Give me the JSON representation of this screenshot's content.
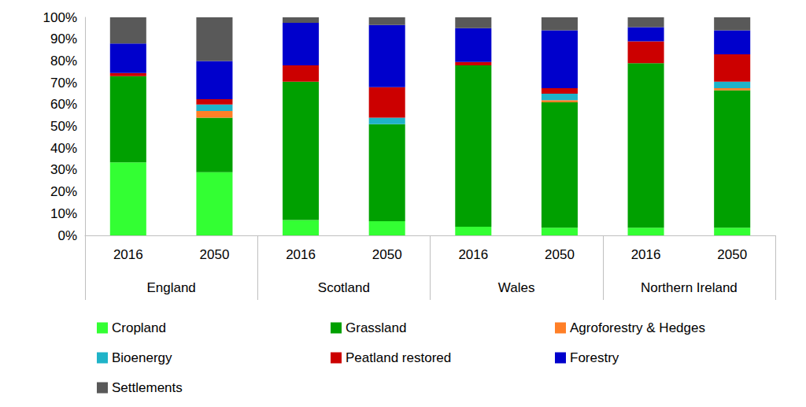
{
  "chart_data": {
    "type": "bar",
    "stacked": true,
    "grid": false,
    "legend": "bottom",
    "categories": [
      "2016",
      "2050",
      "2016",
      "2050",
      "2016",
      "2050",
      "2016",
      "2050"
    ],
    "groups": [
      "England",
      "Scotland",
      "Wales",
      "Northern Ireland"
    ],
    "ylim": [
      0,
      100
    ],
    "yticks": [
      {
        "value": 0,
        "label": "0%"
      },
      {
        "value": 10,
        "label": "10%"
      },
      {
        "value": 20,
        "label": "20%"
      },
      {
        "value": 30,
        "label": "30%"
      },
      {
        "value": 40,
        "label": "40%"
      },
      {
        "value": 50,
        "label": "50%"
      },
      {
        "value": 60,
        "label": "60%"
      },
      {
        "value": 70,
        "label": "70%"
      },
      {
        "value": 80,
        "label": "80%"
      },
      {
        "value": 90,
        "label": "90%"
      },
      {
        "value": 100,
        "label": "100%"
      }
    ],
    "series": [
      {
        "name": "Cropland",
        "color": "#33ff33",
        "values": [
          33.5,
          29,
          7,
          6.5,
          4,
          3.5,
          3.5,
          3.5
        ]
      },
      {
        "name": "Grassland",
        "color": "#00a000",
        "values": [
          39.5,
          25,
          63.5,
          44.5,
          74,
          57.5,
          75.5,
          63
        ]
      },
      {
        "name": "Agroforestry & Hedges",
        "color": "#ff7f27",
        "values": [
          0,
          3,
          0,
          0,
          0,
          1,
          0,
          1
        ]
      },
      {
        "name": "Bioenergy",
        "color": "#1fb3c8",
        "values": [
          0,
          3,
          0,
          3,
          0,
          3,
          0,
          3
        ]
      },
      {
        "name": "Peatland restored",
        "color": "#cc0000",
        "values": [
          1.5,
          2.5,
          7.5,
          14,
          1.5,
          2.5,
          10,
          12.5
        ]
      },
      {
        "name": "Forestry",
        "color": "#0000cc",
        "values": [
          13.5,
          17.5,
          19.5,
          28.5,
          15.5,
          26.5,
          6.5,
          11
        ]
      },
      {
        "name": "Settlements",
        "color": "#595959",
        "values": [
          12,
          20,
          2.5,
          3.5,
          5,
          6,
          4.5,
          6
        ]
      }
    ]
  }
}
